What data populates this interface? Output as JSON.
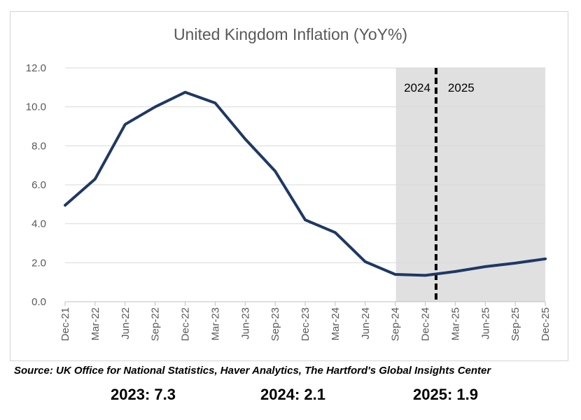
{
  "chart_data": {
    "type": "line",
    "title": "United Kingdom Inflation (YoY%)",
    "categories": [
      "Dec-21",
      "Mar-22",
      "Jun-22",
      "Sep-22",
      "Dec-22",
      "Mar-23",
      "Jun-23",
      "Sep-23",
      "Dec-23",
      "Mar-24",
      "Jun-24",
      "Sep-24",
      "Dec-24",
      "Mar-25",
      "Jun-25",
      "Sep-25",
      "Dec-25"
    ],
    "series": [
      {
        "values": [
          4.95,
          6.3,
          9.1,
          10.0,
          10.75,
          10.2,
          8.35,
          6.7,
          4.2,
          3.55,
          2.05,
          1.4,
          1.35,
          1.55,
          1.8,
          1.98,
          2.2
        ]
      }
    ],
    "ylim": [
      0,
      12
    ],
    "yticks": [
      "0.0",
      "2.0",
      "4.0",
      "6.0",
      "8.0",
      "10.0",
      "12.0"
    ],
    "grid": true,
    "forecast_shading_start": "Sep-24",
    "divider_labels": [
      "2024",
      "2025"
    ],
    "line_color": "#1f3864",
    "shading_color": "#e0e0e0"
  },
  "source": "Source: UK Office for National Statistics, Haver Analytics, The Hartford's Global Insights Center",
  "annual": [
    "2023: 7.3",
    "2024: 2.1",
    "2025: 1.9"
  ]
}
